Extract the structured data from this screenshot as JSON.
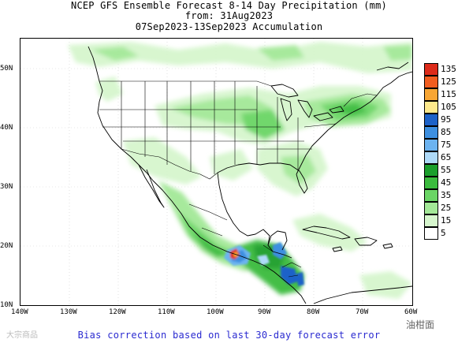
{
  "title": {
    "line1": "NCEP GFS Ensemble Forecast 8-14 Day Precipitation (mm)",
    "line2": "from: 31Aug2023",
    "line3": "07Sep2023-13Sep2023 Accumulation"
  },
  "map": {
    "lat_labels": [
      "50N",
      "40N",
      "30N",
      "20N",
      "10N"
    ],
    "lon_labels": [
      "140W",
      "130W",
      "120W",
      "110W",
      "100W",
      "90W",
      "80W",
      "70W",
      "60W"
    ],
    "extent": {
      "lon": [
        -140,
        -60
      ],
      "lat": [
        10,
        55
      ]
    },
    "precip_regions": [
      {
        "name": "northern-plains-great-lakes",
        "lon": [
          -108,
          -66
        ],
        "lat": [
          36,
          51
        ],
        "level": "5-25"
      },
      {
        "name": "northeast-us",
        "lon": [
          -80,
          -66
        ],
        "lat": [
          40,
          46
        ],
        "level": "15-35"
      },
      {
        "name": "southeast-us",
        "lon": [
          -92,
          -78
        ],
        "lat": [
          26,
          35
        ],
        "level": "5-25"
      },
      {
        "name": "mexico-west-coast",
        "lon": [
          -108,
          -96
        ],
        "lat": [
          16,
          24
        ],
        "level": "15-45"
      },
      {
        "name": "southern-mexico-isthmus",
        "lon": [
          -98,
          -93
        ],
        "lat": [
          15,
          19
        ],
        "level": "55-135"
      },
      {
        "name": "central-america",
        "lon": [
          -93,
          -83
        ],
        "lat": [
          8,
          17
        ],
        "level": "25-95"
      },
      {
        "name": "canada-north",
        "lon": [
          -135,
          -60
        ],
        "lat": [
          47,
          55
        ],
        "level": "5-15"
      }
    ]
  },
  "legend": {
    "labels": [
      "135",
      "125",
      "115",
      "105",
      "95",
      "85",
      "75",
      "65",
      "55",
      "45",
      "35",
      "25",
      "15",
      "5"
    ],
    "colors": [
      "#dd2b1a",
      "#f25d1f",
      "#f8a634",
      "#fee98c",
      "#1d62c8",
      "#3d8fe0",
      "#6cb3f0",
      "#aedaf9",
      "#1a9f2c",
      "#3bbb3e",
      "#6ad565",
      "#a3e897",
      "#d6f6cd",
      "#ffffff"
    ]
  },
  "footer": "Bias correction based on last 30-day forecast error",
  "watermarks": {
    "left": "大宗商品",
    "right": "油柑面"
  }
}
